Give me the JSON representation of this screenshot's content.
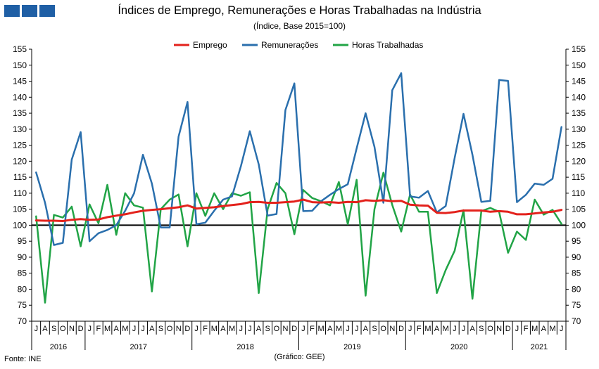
{
  "header": {
    "title": "Índices de Emprego, Remunerações e Horas Trabalhadas na Indústria",
    "subtitle": "(Índice, Base 2015=100)"
  },
  "footer": {
    "source": "Fonte: INE",
    "note": "(Gráfico: GEE)"
  },
  "colors": {
    "emprego": "#e3221c",
    "remuneracoes": "#2a6fad",
    "horas": "#21a446",
    "logo": "#1f5fa5"
  },
  "chart_data": {
    "type": "line",
    "x": [
      "J",
      "A",
      "S",
      "O",
      "N",
      "D",
      "J",
      "F",
      "M",
      "A",
      "M",
      "J",
      "J",
      "A",
      "S",
      "O",
      "N",
      "D",
      "J",
      "F",
      "M",
      "A",
      "M",
      "J",
      "J",
      "A",
      "S",
      "O",
      "N",
      "D",
      "J",
      "F",
      "M",
      "A",
      "M",
      "J",
      "J",
      "A",
      "S",
      "O",
      "N",
      "D",
      "J",
      "F",
      "M",
      "A",
      "M",
      "J",
      "J",
      "A",
      "S",
      "O",
      "N",
      "D",
      "J",
      "F",
      "M",
      "A",
      "M",
      "J"
    ],
    "year_groups": [
      {
        "label": "2016",
        "count": 6
      },
      {
        "label": "2017",
        "count": 12
      },
      {
        "label": "2018",
        "count": 12
      },
      {
        "label": "2019",
        "count": 12
      },
      {
        "label": "2020",
        "count": 12
      },
      {
        "label": "2021",
        "count": 6
      }
    ],
    "ylim": [
      70,
      155
    ],
    "yticks": [
      70,
      75,
      80,
      85,
      90,
      95,
      100,
      105,
      110,
      115,
      120,
      125,
      130,
      135,
      140,
      145,
      150,
      155
    ],
    "reference_line": 100,
    "legend_position": "top-center",
    "series": [
      {
        "name": "Emprego",
        "color": "#e3221c",
        "values": [
          101.5,
          101.4,
          101.4,
          101.3,
          101.7,
          101.9,
          101.7,
          101.8,
          102.5,
          103.0,
          103.4,
          104.0,
          104.5,
          104.8,
          105.0,
          105.3,
          105.6,
          106.2,
          105.2,
          105.4,
          105.6,
          106.0,
          106.3,
          106.6,
          107.2,
          107.3,
          107.0,
          107.0,
          107.2,
          107.4,
          108.0,
          107.2,
          107.1,
          107.2,
          107.0,
          107.3,
          107.2,
          107.8,
          107.6,
          107.8,
          107.5,
          107.6,
          106.4,
          106.2,
          106.1,
          103.9,
          103.8,
          104.1,
          104.6,
          104.6,
          104.6,
          104.2,
          104.4,
          104.2,
          103.4,
          103.4,
          103.7,
          104.0,
          104.2,
          104.8
        ]
      },
      {
        "name": "Remunerações",
        "color": "#2a6fad",
        "values": [
          116.5,
          107.0,
          93.8,
          94.5,
          120.5,
          129.1,
          95.0,
          97.5,
          98.5,
          100.0,
          104.5,
          110.0,
          122.0,
          113.0,
          99.3,
          99.3,
          127.7,
          138.5,
          100.3,
          100.8,
          104.5,
          108.0,
          109.0,
          118.5,
          129.4,
          119.0,
          103.0,
          103.5,
          136.0,
          144.3,
          104.4,
          104.5,
          107.5,
          109.5,
          111.3,
          112.8,
          124.0,
          135.0,
          124.5,
          107.0,
          142.2,
          147.5,
          109.0,
          108.6,
          110.7,
          104.0,
          106.0,
          121.0,
          134.8,
          122.0,
          107.3,
          107.6,
          145.4,
          145.1,
          107.2,
          109.5,
          113.0,
          112.6,
          114.5,
          130.7
        ]
      },
      {
        "name": "Horas Trabalhadas",
        "color": "#21a446",
        "values": [
          102.8,
          75.8,
          103.2,
          102.4,
          105.8,
          93.4,
          106.5,
          100.6,
          112.6,
          97.0,
          110.0,
          106.2,
          105.5,
          79.3,
          105.0,
          108.0,
          109.6,
          93.4,
          110.0,
          102.9,
          110.0,
          105.0,
          110.0,
          109.2,
          110.3,
          78.8,
          105.0,
          113.2,
          110.0,
          97.2,
          111.0,
          108.5,
          107.5,
          106.2,
          113.5,
          100.3,
          114.2,
          78.0,
          105.0,
          116.4,
          106.3,
          98.0,
          109.6,
          104.2,
          104.2,
          78.8,
          86.0,
          92.0,
          104.7,
          77.0,
          104.4,
          105.4,
          104.2,
          91.4,
          98.0,
          95.4,
          108.0,
          103.3,
          104.8,
          100.4
        ]
      }
    ]
  }
}
